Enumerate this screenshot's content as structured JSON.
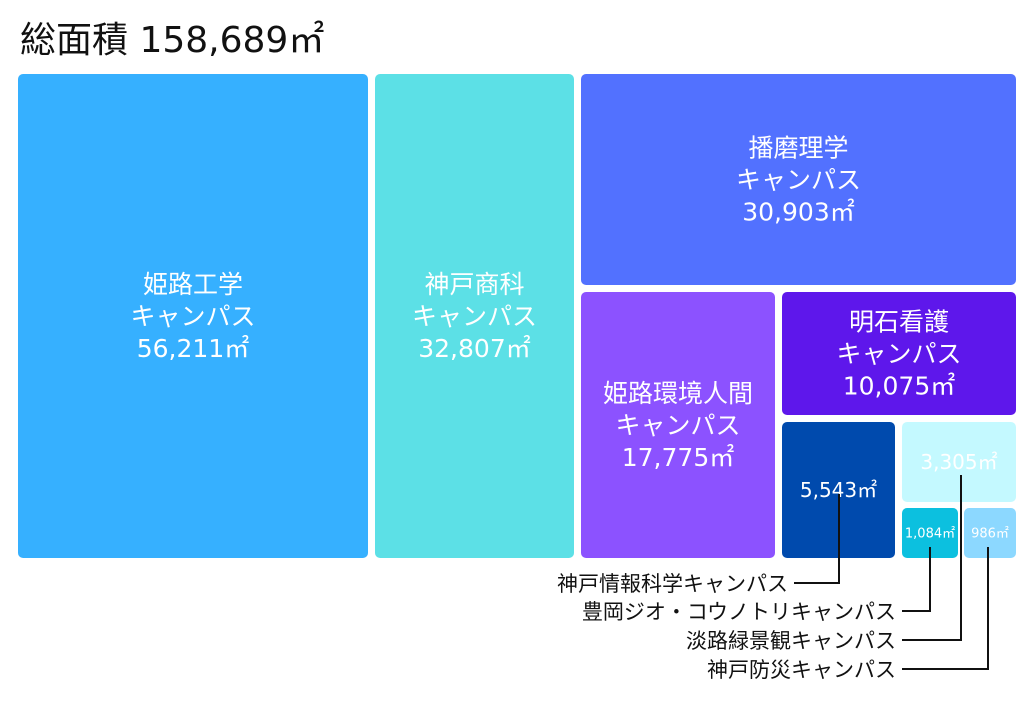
{
  "chart_data": {
    "type": "treemap",
    "title": "総面積 158,689㎡",
    "unit": "㎡",
    "items": [
      {
        "name": "姫路工学キャンパス",
        "line1": "姫路工学",
        "line2": "キャンパス",
        "value": 56211,
        "value_label": "56,211㎡",
        "color": "#36B0FF",
        "text_color": "#FFFFFF"
      },
      {
        "name": "神戸商科キャンパス",
        "line1": "神戸商科",
        "line2": "キャンパス",
        "value": 32807,
        "value_label": "32,807㎡",
        "color": "#5CE0E6",
        "text_color": "#FFFFFF"
      },
      {
        "name": "播磨理学キャンパス",
        "line1": "播磨理学",
        "line2": "キャンパス",
        "value": 30903,
        "value_label": "30,903㎡",
        "color": "#5271FF",
        "text_color": "#FFFFFF"
      },
      {
        "name": "姫路環境人間キャンパス",
        "line1": "姫路環境人間",
        "line2": "キャンパス",
        "value": 17775,
        "value_label": "17,775㎡",
        "color": "#8C52FF",
        "text_color": "#FFFFFF"
      },
      {
        "name": "明石看護キャンパス",
        "line1": "明石看護",
        "line2": "キャンパス",
        "value": 10075,
        "value_label": "10,075㎡",
        "color": "#5E17EB",
        "text_color": "#FFFFFF"
      },
      {
        "name": "神戸情報科学キャンパス",
        "value": 5543,
        "value_label": "5,543㎡",
        "color": "#004AAD",
        "text_color": "#FFFFFF"
      },
      {
        "name": "淡路緑景観キャンパス",
        "value": 3305,
        "value_label": "3,305㎡",
        "color": "#C4F9FF",
        "text_color": "#111111"
      },
      {
        "name": "豊岡ジオ・コウノトリキャンパス",
        "value": 1084,
        "value_label": "1,084㎡",
        "color": "#0CC0DF",
        "text_color": "#FFFFFF"
      },
      {
        "name": "神戸防災キャンパス",
        "value": 986,
        "value_label": "986㎡",
        "color": "#8CD8FF",
        "text_color": "#111111"
      }
    ],
    "callouts": [
      "神戸情報科学キャンパス",
      "豊岡ジオ・コウノトリキャンパス",
      "淡路緑景観キャンパス",
      "神戸防災キャンパス"
    ]
  }
}
